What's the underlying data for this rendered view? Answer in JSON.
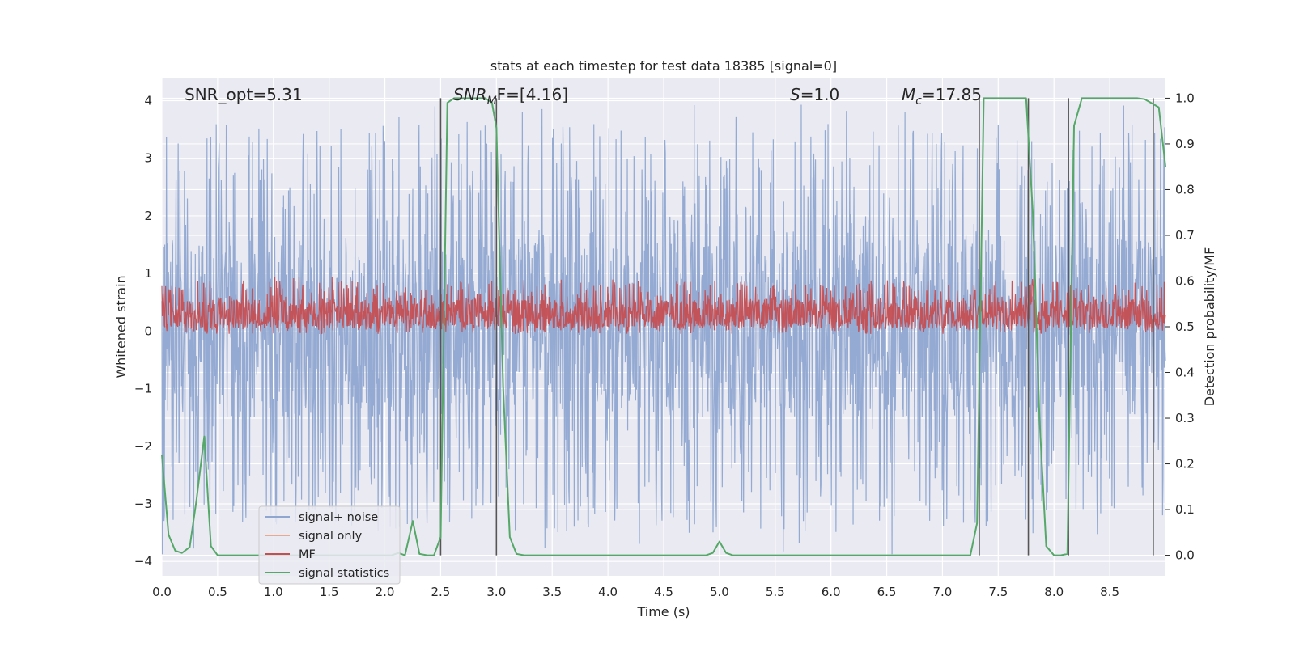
{
  "chart_data": {
    "type": "line",
    "title": "stats at each timestep for test data 18385 [signal=0]",
    "xlabel": "Time (s)",
    "ylabel_left": "Whitened strain",
    "ylabel_right": "Detection probability/MF",
    "xlim": [
      0.0,
      9.0
    ],
    "ylim_left": [
      -4.25,
      4.4
    ],
    "ylim_right": [
      -0.045,
      1.045
    ],
    "x_ticks": [
      "0.0",
      "0.5",
      "1.0",
      "1.5",
      "2.0",
      "2.5",
      "3.0",
      "3.5",
      "4.0",
      "4.5",
      "5.0",
      "5.5",
      "6.0",
      "6.5",
      "7.0",
      "7.5",
      "8.0",
      "8.5"
    ],
    "y_ticks_left": [
      "−4",
      "−3",
      "−2",
      "−1",
      "0",
      "1",
      "2",
      "3",
      "4"
    ],
    "y_ticks_right": [
      "0.0",
      "0.1",
      "0.2",
      "0.3",
      "0.4",
      "0.5",
      "0.6",
      "0.7",
      "0.8",
      "0.9",
      "1.0"
    ],
    "grid": true,
    "annotations": [
      {
        "id": "snr-opt",
        "text": "SNR_opt=5.31"
      },
      {
        "id": "snr-mf",
        "main": "SNR",
        "sub": "M",
        "rest": "F=[4.16]"
      },
      {
        "id": "s-val",
        "main": "S",
        "rest": "=1.0"
      },
      {
        "id": "mc-val",
        "main": "M",
        "sub": "c",
        "rest": "=17.85"
      }
    ],
    "legend": {
      "location": "lower-left",
      "entries": [
        {
          "label": "signal+ noise",
          "color": "#8fa6d0"
        },
        {
          "label": "signal only",
          "color": "#e8a98e"
        },
        {
          "label": "MF",
          "color": "#c44e52"
        },
        {
          "label": "signal statistics",
          "color": "#55a868"
        }
      ]
    },
    "colors": {
      "signal_noise": "#8fa6d0",
      "mf": "#c44e52",
      "stat": "#55a868",
      "vline": "#555555",
      "background": "#eaeaf2"
    },
    "series": [
      {
        "name": "signal+ noise",
        "kind": "noise",
        "center": 0.0,
        "band_low": -1.5,
        "band_high": 1.6,
        "peak_low": -3.9,
        "peak_high": 4.0
      },
      {
        "name": "MF",
        "kind": "noise",
        "center": 0.25,
        "band_low": 0.05,
        "band_high": 0.55,
        "peak_low": -0.05,
        "peak_high": 0.95
      },
      {
        "name": "signal statistics",
        "kind": "line",
        "axis": "right",
        "x": [
          0.0,
          0.06,
          0.12,
          0.18,
          0.25,
          0.31,
          0.38,
          0.44,
          0.5,
          0.6,
          1.0,
          1.5,
          2.0,
          2.06,
          2.12,
          2.18,
          2.25,
          2.31,
          2.38,
          2.44,
          2.5,
          2.56,
          2.62,
          2.7,
          2.9,
          2.96,
          3.0,
          3.06,
          3.12,
          3.18,
          3.25,
          3.5,
          4.0,
          4.5,
          4.88,
          4.94,
          5.0,
          5.06,
          5.12,
          5.5,
          6.0,
          6.5,
          7.0,
          7.25,
          7.31,
          7.37,
          7.43,
          7.6,
          7.75,
          7.81,
          7.87,
          7.93,
          8.0,
          8.06,
          8.12,
          8.18,
          8.25,
          8.4,
          8.75,
          8.81,
          8.87,
          8.94,
          9.0
        ],
        "y": [
          0.22,
          0.045,
          0.01,
          0.005,
          0.018,
          0.12,
          0.26,
          0.02,
          0.0,
          0.0,
          0.0,
          0.0,
          0.0,
          0.0,
          0.005,
          0.0,
          0.075,
          0.003,
          0.0,
          0.0,
          0.04,
          0.99,
          1.0,
          1.0,
          1.0,
          0.99,
          0.935,
          0.37,
          0.04,
          0.003,
          0.0,
          0.0,
          0.0,
          0.0,
          0.0,
          0.005,
          0.03,
          0.005,
          0.0,
          0.0,
          0.0,
          0.0,
          0.0,
          0.0,
          0.07,
          1.0,
          1.0,
          1.0,
          1.0,
          0.75,
          0.3,
          0.02,
          0.0,
          0.0,
          0.003,
          0.94,
          1.0,
          1.0,
          1.0,
          0.998,
          0.99,
          0.98,
          0.85
        ]
      }
    ],
    "vertical_lines_x": [
      2.5,
      3.0,
      7.33,
      7.77,
      8.13,
      8.89
    ]
  }
}
